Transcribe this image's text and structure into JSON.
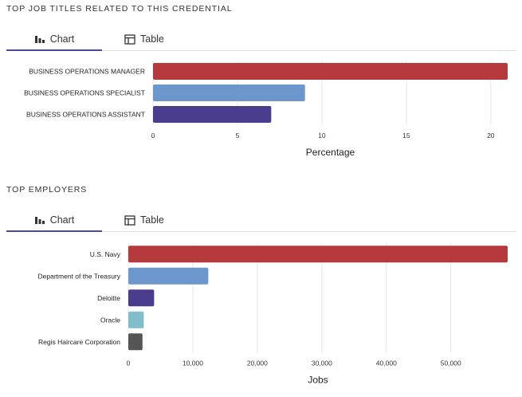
{
  "sections": [
    {
      "title": "TOP JOB TITLES RELATED TO THIS CREDENTIAL",
      "tabs": [
        {
          "label": "Chart",
          "icon": "bar-chart-icon",
          "active": true
        },
        {
          "label": "Table",
          "icon": "table-icon",
          "active": false
        }
      ]
    },
    {
      "title": "TOP EMPLOYERS",
      "tabs": [
        {
          "label": "Chart",
          "icon": "bar-chart-icon",
          "active": true
        },
        {
          "label": "Table",
          "icon": "table-icon",
          "active": false
        }
      ]
    }
  ],
  "chart_data": [
    {
      "type": "bar",
      "orientation": "horizontal",
      "categories": [
        "BUSINESS OPERATIONS MANAGER",
        "BUSINESS OPERATIONS SPECIALIST",
        "BUSINESS OPERATIONS ASSISTANT"
      ],
      "values": [
        21,
        9,
        7
      ],
      "colors": [
        "#b5393d",
        "#6b97cd",
        "#4b3d8d"
      ],
      "xlabel": "Percentage",
      "xlim": [
        0,
        21
      ],
      "xticks": [
        0,
        5,
        10,
        15,
        20
      ],
      "xtick_labels": [
        "0",
        "5",
        "10",
        "15",
        "20"
      ],
      "grid": true
    },
    {
      "type": "bar",
      "orientation": "horizontal",
      "categories": [
        "U.S. Navy",
        "Department of the Treasury",
        "Deloitte",
        "Oracle",
        "Regis Haircare Corporation"
      ],
      "values": [
        58800,
        12400,
        4000,
        2400,
        2200
      ],
      "colors": [
        "#b5393d",
        "#6b97cd",
        "#4b3d8d",
        "#82bdcc",
        "#555555"
      ],
      "xlabel": "Jobs",
      "xlim": [
        0,
        58800
      ],
      "xticks": [
        0,
        10000,
        20000,
        30000,
        40000,
        50000
      ],
      "xtick_labels": [
        "0",
        "10,000",
        "20,000",
        "30,000",
        "40,000",
        "50,000"
      ],
      "grid": true
    }
  ]
}
